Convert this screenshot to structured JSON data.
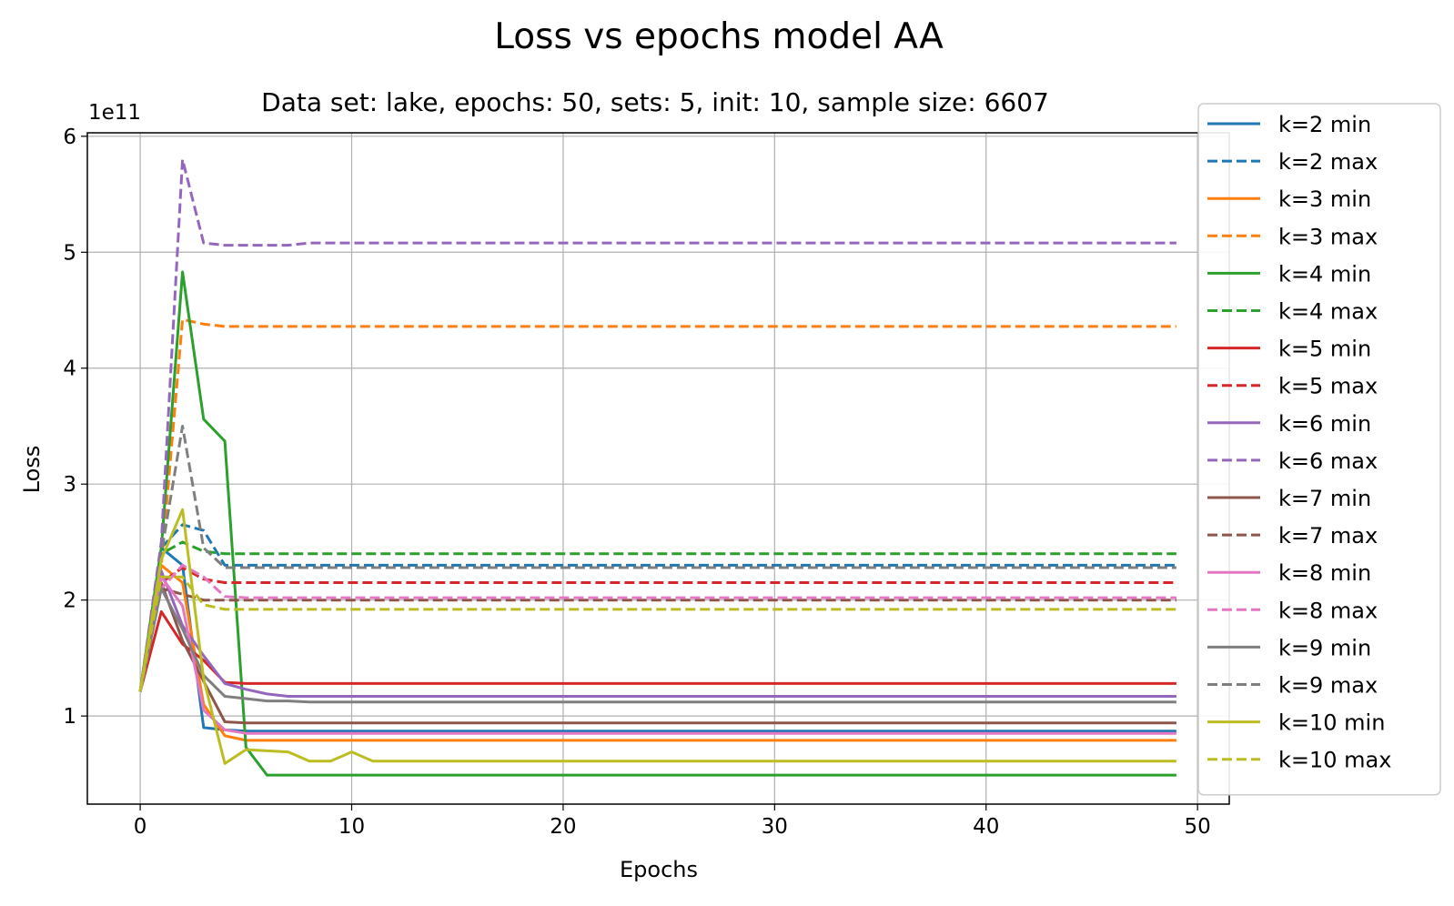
{
  "chart_data": {
    "type": "line",
    "title": "Loss vs epochs model AA",
    "subtitle": "Data set:  lake, epochs: 50, sets: 5, init: 10, sample size: 6607",
    "xlabel": "Epochs",
    "ylabel": "Loss",
    "y_scale_label": "1e11",
    "x_ticks": [
      0,
      10,
      20,
      30,
      40,
      50
    ],
    "y_ticks": [
      1,
      2,
      3,
      4,
      5,
      6
    ],
    "xlim": [
      -2.5,
      51.5
    ],
    "ylim": [
      0.24,
      6.03
    ],
    "y_unit_multiplier": 100000000000.0,
    "grid": true,
    "legend_position": "right, outside plot",
    "epochs": 50,
    "series": [
      {
        "name": "k=2 min",
        "color": "#1f77b4",
        "dash": false,
        "points": [
          [
            0,
            1.21
          ],
          [
            1,
            2.45
          ],
          [
            2,
            2.3
          ],
          [
            3,
            0.9
          ],
          [
            4,
            0.88
          ],
          [
            5,
            0.87
          ],
          [
            49,
            0.87
          ]
        ]
      },
      {
        "name": "k=2 max",
        "color": "#1f77b4",
        "dash": true,
        "points": [
          [
            0,
            1.21
          ],
          [
            1,
            2.45
          ],
          [
            2,
            2.65
          ],
          [
            3,
            2.6
          ],
          [
            4,
            2.3
          ],
          [
            5,
            2.3
          ],
          [
            49,
            2.3
          ]
        ]
      },
      {
        "name": "k=3 min",
        "color": "#ff7f0e",
        "dash": false,
        "points": [
          [
            0,
            1.21
          ],
          [
            1,
            2.3
          ],
          [
            2,
            2.15
          ],
          [
            3,
            1.1
          ],
          [
            4,
            0.83
          ],
          [
            5,
            0.79
          ],
          [
            49,
            0.79
          ]
        ]
      },
      {
        "name": "k=3 max",
        "color": "#ff7f0e",
        "dash": true,
        "points": [
          [
            0,
            1.21
          ],
          [
            1,
            2.3
          ],
          [
            2,
            4.42
          ],
          [
            3,
            4.38
          ],
          [
            4,
            4.36
          ],
          [
            5,
            4.36
          ],
          [
            49,
            4.36
          ]
        ]
      },
      {
        "name": "k=4 min",
        "color": "#2ca02c",
        "dash": false,
        "points": [
          [
            0,
            1.21
          ],
          [
            1,
            2.45
          ],
          [
            2,
            4.83
          ],
          [
            3,
            3.56
          ],
          [
            4,
            3.37
          ],
          [
            5,
            0.73
          ],
          [
            6,
            0.49
          ],
          [
            49,
            0.49
          ]
        ]
      },
      {
        "name": "k=4 max",
        "color": "#2ca02c",
        "dash": true,
        "points": [
          [
            0,
            1.21
          ],
          [
            1,
            2.4
          ],
          [
            2,
            2.5
          ],
          [
            3,
            2.42
          ],
          [
            4,
            2.4
          ],
          [
            5,
            2.4
          ],
          [
            49,
            2.4
          ]
        ]
      },
      {
        "name": "k=5 min",
        "color": "#d62728",
        "dash": false,
        "points": [
          [
            0,
            1.21
          ],
          [
            1,
            1.9
          ],
          [
            2,
            1.62
          ],
          [
            3,
            1.48
          ],
          [
            4,
            1.29
          ],
          [
            5,
            1.28
          ],
          [
            8,
            1.28
          ],
          [
            49,
            1.28
          ]
        ]
      },
      {
        "name": "k=5 max",
        "color": "#d62728",
        "dash": true,
        "points": [
          [
            0,
            1.21
          ],
          [
            1,
            2.15
          ],
          [
            2,
            2.28
          ],
          [
            3,
            2.18
          ],
          [
            4,
            2.15
          ],
          [
            5,
            2.15
          ],
          [
            49,
            2.15
          ]
        ]
      },
      {
        "name": "k=6 min",
        "color": "#9467bd",
        "dash": false,
        "points": [
          [
            0,
            1.21
          ],
          [
            1,
            2.25
          ],
          [
            2,
            1.78
          ],
          [
            3,
            1.52
          ],
          [
            4,
            1.28
          ],
          [
            5,
            1.23
          ],
          [
            6,
            1.19
          ],
          [
            7,
            1.17
          ],
          [
            49,
            1.17
          ]
        ]
      },
      {
        "name": "k=6 max",
        "color": "#9467bd",
        "dash": true,
        "points": [
          [
            0,
            1.21
          ],
          [
            1,
            2.5
          ],
          [
            2,
            5.8
          ],
          [
            3,
            5.08
          ],
          [
            4,
            5.06
          ],
          [
            7,
            5.06
          ],
          [
            8,
            5.08
          ],
          [
            49,
            5.08
          ]
        ]
      },
      {
        "name": "k=7 min",
        "color": "#8c564b",
        "dash": false,
        "points": [
          [
            0,
            1.21
          ],
          [
            1,
            2.15
          ],
          [
            2,
            1.65
          ],
          [
            3,
            1.3
          ],
          [
            4,
            0.95
          ],
          [
            5,
            0.94
          ],
          [
            49,
            0.94
          ]
        ]
      },
      {
        "name": "k=7 max",
        "color": "#8c564b",
        "dash": true,
        "points": [
          [
            0,
            1.21
          ],
          [
            1,
            2.1
          ],
          [
            2,
            2.05
          ],
          [
            3,
            2.0
          ],
          [
            4,
            2.0
          ],
          [
            49,
            2.0
          ]
        ]
      },
      {
        "name": "k=8 min",
        "color": "#e377c2",
        "dash": false,
        "points": [
          [
            0,
            1.21
          ],
          [
            1,
            2.2
          ],
          [
            2,
            1.95
          ],
          [
            3,
            1.05
          ],
          [
            4,
            0.88
          ],
          [
            5,
            0.85
          ],
          [
            49,
            0.85
          ]
        ]
      },
      {
        "name": "k=8 max",
        "color": "#e377c2",
        "dash": true,
        "points": [
          [
            0,
            1.21
          ],
          [
            1,
            2.1
          ],
          [
            2,
            2.3
          ],
          [
            3,
            2.2
          ],
          [
            4,
            2.03
          ],
          [
            5,
            2.02
          ],
          [
            49,
            2.02
          ]
        ]
      },
      {
        "name": "k=9 min",
        "color": "#7f7f7f",
        "dash": false,
        "points": [
          [
            0,
            1.21
          ],
          [
            1,
            2.1
          ],
          [
            2,
            1.75
          ],
          [
            3,
            1.35
          ],
          [
            4,
            1.17
          ],
          [
            5,
            1.15
          ],
          [
            6,
            1.13
          ],
          [
            7,
            1.13
          ],
          [
            8,
            1.12
          ],
          [
            49,
            1.12
          ]
        ]
      },
      {
        "name": "k=9 max",
        "color": "#7f7f7f",
        "dash": true,
        "points": [
          [
            0,
            1.21
          ],
          [
            1,
            2.4
          ],
          [
            2,
            3.5
          ],
          [
            3,
            2.45
          ],
          [
            4,
            2.28
          ],
          [
            5,
            2.28
          ],
          [
            49,
            2.28
          ]
        ]
      },
      {
        "name": "k=10 min",
        "color": "#bcbd22",
        "dash": false,
        "points": [
          [
            0,
            1.21
          ],
          [
            1,
            2.35
          ],
          [
            2,
            2.78
          ],
          [
            3,
            1.32
          ],
          [
            4,
            0.59
          ],
          [
            5,
            0.71
          ],
          [
            6,
            0.7
          ],
          [
            7,
            0.69
          ],
          [
            8,
            0.61
          ],
          [
            9,
            0.61
          ],
          [
            10,
            0.69
          ],
          [
            11,
            0.61
          ],
          [
            49,
            0.61
          ]
        ]
      },
      {
        "name": "k=10 max",
        "color": "#bcbd22",
        "dash": true,
        "points": [
          [
            0,
            1.21
          ],
          [
            1,
            2.2
          ],
          [
            2,
            2.2
          ],
          [
            3,
            1.96
          ],
          [
            4,
            1.92
          ],
          [
            5,
            1.92
          ],
          [
            49,
            1.92
          ]
        ]
      }
    ]
  }
}
